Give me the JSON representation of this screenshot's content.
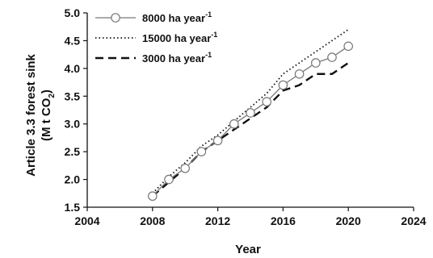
{
  "chart_data": {
    "type": "line",
    "xlabel": "Year",
    "ylabel_line1": "Article 3.3 forest sink",
    "ylabel_line2": "(M t CO",
    "ylabel_line2_sub": "2",
    "ylabel_line2_end": ")",
    "xlim": [
      2004,
      2024
    ],
    "ylim": [
      1.5,
      5.0
    ],
    "xticks": [
      "2004",
      "2008",
      "2012",
      "2016",
      "2020",
      "2024"
    ],
    "yticks": [
      "1.5",
      "2.0",
      "2.5",
      "3.0",
      "3.5",
      "4.0",
      "4.5",
      "5.0"
    ],
    "x": [
      2008,
      2009,
      2010,
      2011,
      2012,
      2013,
      2014,
      2015,
      2016,
      2017,
      2018,
      2019,
      2020
    ],
    "series": [
      {
        "name": "8000 ha year",
        "name_sup": "-1",
        "style": "solid-circles",
        "color": "#777777",
        "values": [
          1.7,
          2.0,
          2.2,
          2.5,
          2.7,
          3.0,
          3.2,
          3.4,
          3.7,
          3.9,
          4.1,
          4.2,
          4.4
        ]
      },
      {
        "name": "15000 ha year",
        "name_sup": "-1",
        "style": "dotted",
        "color": "#111111",
        "values": [
          1.75,
          2.05,
          2.3,
          2.6,
          2.8,
          3.05,
          3.3,
          3.55,
          3.9,
          4.1,
          4.3,
          4.5,
          4.7
        ]
      },
      {
        "name": "3000 ha year",
        "name_sup": "-1",
        "style": "dashed",
        "color": "#111111",
        "values": [
          1.7,
          1.95,
          2.2,
          2.5,
          2.7,
          2.9,
          3.1,
          3.3,
          3.6,
          3.7,
          3.9,
          3.9,
          4.1
        ]
      }
    ],
    "legend_position": "top-left",
    "grid": false
  }
}
